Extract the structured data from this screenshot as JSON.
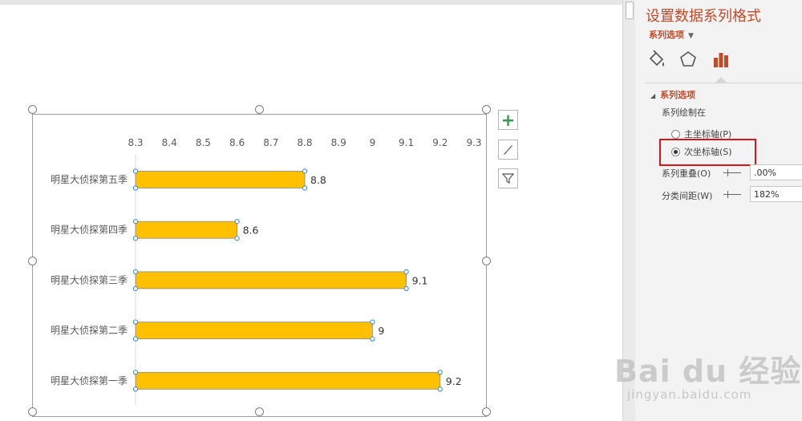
{
  "pane": {
    "title": "设置数据系列格式",
    "subtitle": "系列选项",
    "tabs": [
      {
        "name": "fill-line",
        "icon": "paint-bucket-icon"
      },
      {
        "name": "effects",
        "icon": "pentagon-icon"
      },
      {
        "name": "series-options",
        "icon": "bar-chart-icon",
        "selected": true
      }
    ],
    "section_title": "系列选项",
    "plot_on_label": "系列绘制在",
    "primary_axis_label": "主坐标轴(P)",
    "secondary_axis_label": "次坐标轴(S)",
    "selected_axis": "secondary",
    "overlap_label": "系列重叠(O)",
    "overlap_value": ".00%",
    "gap_label": "分类间距(W)",
    "gap_value": "182%"
  },
  "chart_data": {
    "type": "bar",
    "orientation": "horizontal",
    "categories": [
      "明星大侦探第五季",
      "明星大侦探第四季",
      "明星大侦探第三季",
      "明星大侦探第二季",
      "明星大侦探第一季"
    ],
    "values": [
      8.8,
      8.6,
      9.1,
      9,
      9.2
    ],
    "data_labels": [
      "8.8",
      "8.6",
      "9.1",
      "9",
      "9.2"
    ],
    "xticks": [
      "8.3",
      "8.4",
      "8.5",
      "8.6",
      "8.7",
      "8.8",
      "8.9",
      "9",
      "9.1",
      "9.2",
      "9.3"
    ],
    "xlim": [
      8.3,
      9.3
    ],
    "axis_position": "top",
    "bar_color": "#FFC000",
    "grid": false
  },
  "watermark": {
    "brand": "Bai du 经验",
    "url": "jingyan.baidu.com"
  }
}
